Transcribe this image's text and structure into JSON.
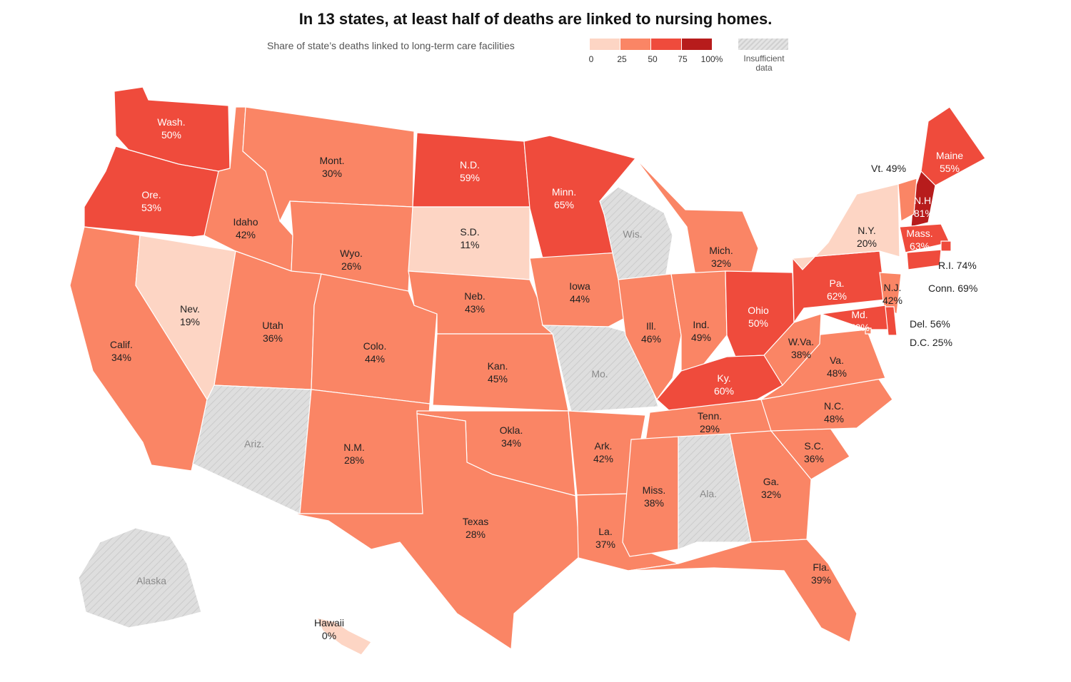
{
  "title": "In 13 states, at least half of deaths are linked to nursing homes.",
  "legend": {
    "label": "Share of state’s deaths linked to long-term care facilities",
    "ticks": [
      "0",
      "25",
      "50",
      "75",
      "100%"
    ],
    "bins": [
      {
        "range": "0–25",
        "color": "#fdd5c4"
      },
      {
        "range": "25–50",
        "color": "#fa8565"
      },
      {
        "range": "50–75",
        "color": "#ef4b3c"
      },
      {
        "range": "75–100",
        "color": "#b71c1c"
      }
    ],
    "insufficient_label": "Insufficient data",
    "insufficient_color": "#dcdcdc"
  },
  "states": [
    {
      "abbr": "Wash.",
      "value": "50%",
      "share": 50
    },
    {
      "abbr": "Ore.",
      "value": "53%",
      "share": 53
    },
    {
      "abbr": "Calif.",
      "value": "34%",
      "share": 34
    },
    {
      "abbr": "Nev.",
      "value": "19%",
      "share": 19
    },
    {
      "abbr": "Idaho",
      "value": "42%",
      "share": 42
    },
    {
      "abbr": "Mont.",
      "value": "30%",
      "share": 30
    },
    {
      "abbr": "Wyo.",
      "value": "26%",
      "share": 26
    },
    {
      "abbr": "Utah",
      "value": "36%",
      "share": 36
    },
    {
      "abbr": "Colo.",
      "value": "44%",
      "share": 44
    },
    {
      "abbr": "Ariz.",
      "value": "",
      "share": null
    },
    {
      "abbr": "N.M.",
      "value": "28%",
      "share": 28
    },
    {
      "abbr": "N.D.",
      "value": "59%",
      "share": 59
    },
    {
      "abbr": "S.D.",
      "value": "11%",
      "share": 11
    },
    {
      "abbr": "Neb.",
      "value": "43%",
      "share": 43
    },
    {
      "abbr": "Kan.",
      "value": "45%",
      "share": 45
    },
    {
      "abbr": "Okla.",
      "value": "34%",
      "share": 34
    },
    {
      "abbr": "Texas",
      "value": "28%",
      "share": 28
    },
    {
      "abbr": "Minn.",
      "value": "65%",
      "share": 65
    },
    {
      "abbr": "Iowa",
      "value": "44%",
      "share": 44
    },
    {
      "abbr": "Mo.",
      "value": "",
      "share": null
    },
    {
      "abbr": "Ark.",
      "value": "42%",
      "share": 42
    },
    {
      "abbr": "La.",
      "value": "37%",
      "share": 37
    },
    {
      "abbr": "Wis.",
      "value": "",
      "share": null
    },
    {
      "abbr": "Ill.",
      "value": "46%",
      "share": 46
    },
    {
      "abbr": "Mich.",
      "value": "32%",
      "share": 32
    },
    {
      "abbr": "Ind.",
      "value": "49%",
      "share": 49
    },
    {
      "abbr": "Ohio",
      "value": "50%",
      "share": 50
    },
    {
      "abbr": "Ky.",
      "value": "60%",
      "share": 60
    },
    {
      "abbr": "Tenn.",
      "value": "29%",
      "share": 29
    },
    {
      "abbr": "Miss.",
      "value": "38%",
      "share": 38
    },
    {
      "abbr": "Ala.",
      "value": "",
      "share": null
    },
    {
      "abbr": "Ga.",
      "value": "32%",
      "share": 32
    },
    {
      "abbr": "Fla.",
      "value": "39%",
      "share": 39
    },
    {
      "abbr": "S.C.",
      "value": "36%",
      "share": 36
    },
    {
      "abbr": "N.C.",
      "value": "48%",
      "share": 48
    },
    {
      "abbr": "Va.",
      "value": "48%",
      "share": 48
    },
    {
      "abbr": "W.Va.",
      "value": "38%",
      "share": 38
    },
    {
      "abbr": "Pa.",
      "value": "62%",
      "share": 62
    },
    {
      "abbr": "N.Y.",
      "value": "20%",
      "share": 20
    },
    {
      "abbr": "N.J.",
      "value": "42%",
      "share": 42
    },
    {
      "abbr": "Md.",
      "value": "50%",
      "share": 50
    },
    {
      "abbr": "Maine",
      "value": "55%",
      "share": 55
    },
    {
      "abbr": "N.H.",
      "value": "81%",
      "share": 81
    },
    {
      "abbr": "Mass.",
      "value": "63%",
      "share": 63
    },
    {
      "abbr": "Alaska",
      "value": "",
      "share": null
    },
    {
      "abbr": "Hawaii",
      "value": "0%",
      "share": 0
    }
  ],
  "callouts": [
    {
      "text": "Vt. 49%",
      "share": 49
    },
    {
      "text": "R.I. 74%",
      "share": 74
    },
    {
      "text": "Conn. 69%",
      "share": 69
    },
    {
      "text": "Del. 56%",
      "share": 56
    },
    {
      "text": "D.C. 25%",
      "share": 25
    }
  ]
}
